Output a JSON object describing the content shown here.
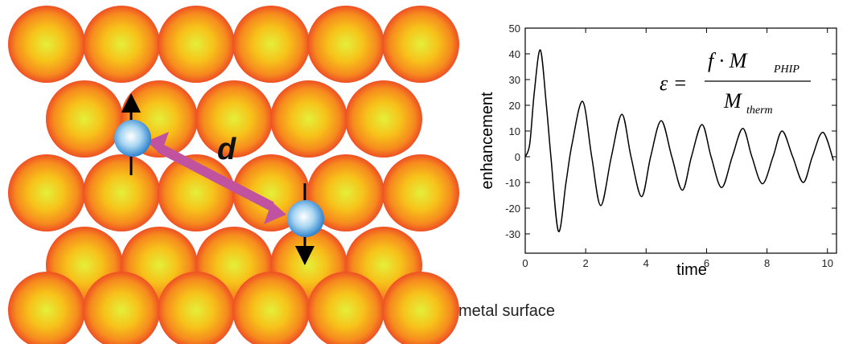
{
  "diagram": {
    "distance_label": "d",
    "surface_label": "metal surface"
  },
  "chart_data": {
    "type": "line",
    "x_label": "time",
    "y_label": "enhancement",
    "equation": {
      "lhs": "ε =",
      "numerator": "f · M",
      "numerator_sub": "PHIP",
      "denominator": "M",
      "denominator_sub": "therm"
    },
    "x": [
      0,
      0.15,
      0.3,
      0.5,
      0.7,
      0.85,
      1.1,
      1.35,
      1.55,
      1.9,
      2.2,
      2.5,
      2.85,
      3.2,
      3.5,
      3.85,
      4.15,
      4.5,
      4.85,
      5.2,
      5.5,
      5.85,
      6.15,
      6.5,
      6.85,
      7.2,
      7.5,
      7.85,
      8.2,
      8.5,
      8.85,
      9.2,
      9.5,
      9.85,
      10.2
    ],
    "series": [
      {
        "color": "#000000",
        "values": [
          0,
          5,
          25,
          41.5,
          20,
          0,
          -29,
          -10,
          5,
          21.5,
          0,
          -19,
          0,
          16.5,
          0,
          -15.5,
          0,
          14,
          0,
          -13,
          0,
          12.5,
          0,
          -12,
          0,
          11,
          0,
          -10.5,
          0,
          10,
          0,
          -10,
          0,
          9.5,
          -1.5
        ]
      }
    ],
    "xlim": [
      0,
      10.3
    ],
    "ylim": [
      -37.5,
      50
    ],
    "xticks": [
      0,
      2,
      4,
      6,
      8,
      10
    ],
    "yticks": [
      -30,
      -20,
      -10,
      0,
      10,
      20,
      30,
      40,
      50
    ]
  }
}
